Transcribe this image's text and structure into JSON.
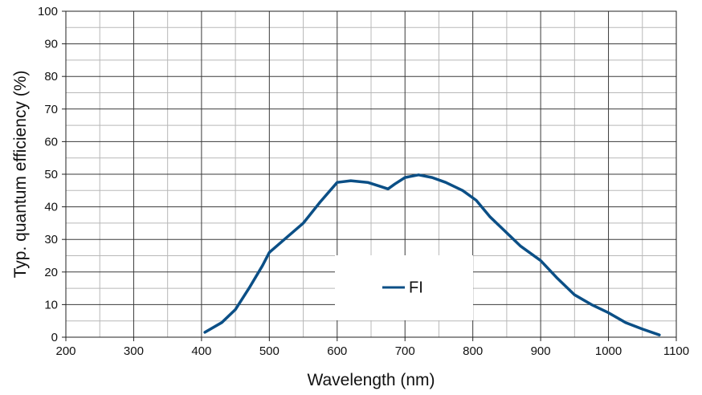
{
  "chart_data": {
    "type": "line",
    "xlabel": "Wavelength (nm)",
    "ylabel": "Typ. quantum efficiency (%)",
    "xlim": [
      200,
      1100
    ],
    "ylim": [
      0,
      100
    ],
    "x_ticks": [
      200,
      300,
      400,
      500,
      600,
      700,
      800,
      900,
      1000,
      1100
    ],
    "y_ticks": [
      0,
      10,
      20,
      30,
      40,
      50,
      60,
      70,
      80,
      90,
      100
    ],
    "grid": true,
    "legend_position": "bottom-center",
    "series": [
      {
        "name": "FI",
        "color": "#0b4f86",
        "x": [
          405,
          430,
          450,
          470,
          490,
          500,
          525,
          550,
          575,
          600,
          620,
          645,
          660,
          675,
          685,
          700,
          720,
          740,
          760,
          785,
          805,
          825,
          845,
          870,
          900,
          925,
          950,
          975,
          1000,
          1025,
          1050,
          1075
        ],
        "y": [
          1.5,
          4.5,
          8.5,
          15,
          22,
          26,
          30.5,
          35,
          41.5,
          47.5,
          48,
          47.5,
          46.5,
          45.5,
          47,
          49,
          49.8,
          49,
          47.5,
          45,
          42,
          37,
          33,
          28,
          23.5,
          18,
          13,
          10,
          7.5,
          4.5,
          2.5,
          0.7
        ]
      }
    ]
  }
}
